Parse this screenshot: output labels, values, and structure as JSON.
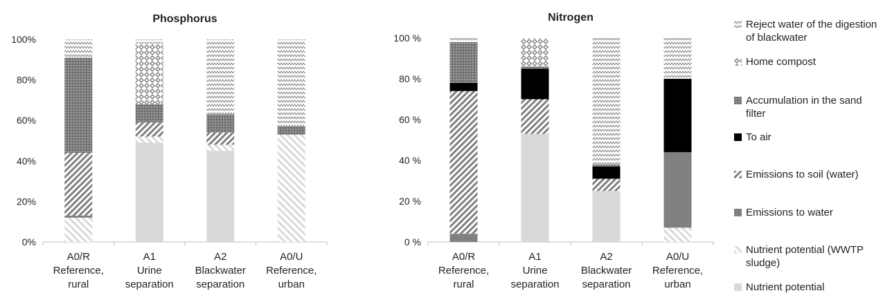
{
  "chart_data": [
    {
      "type": "bar",
      "stacked": true,
      "title": "Phosphorus",
      "categories": [
        [
          "A0/R",
          "Reference,",
          "rural"
        ],
        [
          "A1",
          "Urine",
          "separation"
        ],
        [
          "A2",
          "Blackwater",
          "separation"
        ],
        [
          "A0/U",
          "Reference,",
          "urban"
        ]
      ],
      "yticks": [
        "0%",
        "20%",
        "40%",
        "60%",
        "80%",
        "100%"
      ],
      "ylim": [
        0,
        100
      ],
      "series": [
        {
          "name": "Nutrient potential",
          "values": [
            0,
            49,
            45,
            0
          ]
        },
        {
          "name": "Nutrient potential (WWTP sludge)",
          "values": [
            12,
            3,
            3,
            53
          ]
        },
        {
          "name": "Emissions to water",
          "values": [
            1,
            0,
            0,
            0
          ]
        },
        {
          "name": "Emissions to soil (water)",
          "values": [
            31,
            7,
            6,
            0
          ]
        },
        {
          "name": "To air",
          "values": [
            0,
            0,
            0,
            0
          ]
        },
        {
          "name": "Accumulation in the sand filter",
          "values": [
            47,
            9,
            9,
            4
          ]
        },
        {
          "name": "Home compost",
          "values": [
            0,
            30,
            0,
            0
          ]
        },
        {
          "name": "Reject water of the digestion of blackwater",
          "values": [
            9,
            2,
            37,
            43
          ]
        }
      ]
    },
    {
      "type": "bar",
      "stacked": true,
      "title": "Nitrogen",
      "categories": [
        [
          "A0/R",
          "Reference,",
          "rural"
        ],
        [
          "A1",
          "Urine",
          "separation"
        ],
        [
          "A2",
          "Blackwater",
          "separation"
        ],
        [
          "A0/U",
          "Reference,",
          "urban"
        ]
      ],
      "yticks": [
        "0 %",
        "20 %",
        "40 %",
        "60 %",
        "80 %",
        "100 %"
      ],
      "ylim": [
        0,
        100
      ],
      "series": [
        {
          "name": "Nutrient potential",
          "values": [
            0,
            53,
            25,
            0
          ]
        },
        {
          "name": "Nutrient potential (WWTP sludge)",
          "values": [
            0,
            0,
            0,
            7
          ]
        },
        {
          "name": "Emissions to water",
          "values": [
            4,
            0,
            0,
            37
          ]
        },
        {
          "name": "Emissions to soil (water)",
          "values": [
            70,
            17,
            6,
            0
          ]
        },
        {
          "name": "To air",
          "values": [
            4,
            15,
            6,
            36
          ]
        },
        {
          "name": "Accumulation in the sand filter",
          "values": [
            20,
            1,
            1,
            0
          ]
        },
        {
          "name": "Home compost",
          "values": [
            0,
            14,
            0,
            0
          ]
        },
        {
          "name": "Reject water of the digestion of blackwater",
          "values": [
            2,
            0,
            62,
            20
          ]
        }
      ]
    }
  ],
  "legend": [
    {
      "label": "Reject water of the digestion of blackwater",
      "pattern": "zigzag"
    },
    {
      "label": "Home compost",
      "pattern": "diamond"
    },
    {
      "label": "Accumulation in the sand filter",
      "pattern": "dots"
    },
    {
      "label": "To air",
      "pattern": "solid-black"
    },
    {
      "label": "Emissions to soil (water)",
      "pattern": "diag-dense"
    },
    {
      "label": "Emissions to water",
      "pattern": "solid-gray"
    },
    {
      "label": "Nutrient potential (WWTP sludge)",
      "pattern": "diag-light"
    },
    {
      "label": "Nutrient potential",
      "pattern": "solid-light"
    }
  ],
  "colors": {
    "text": "#222222",
    "axis": "#bfbfbf",
    "solid_black": "#000000",
    "solid_gray": "#808080",
    "solid_light": "#d9d9d9",
    "hatch": "#7f7f7f"
  }
}
